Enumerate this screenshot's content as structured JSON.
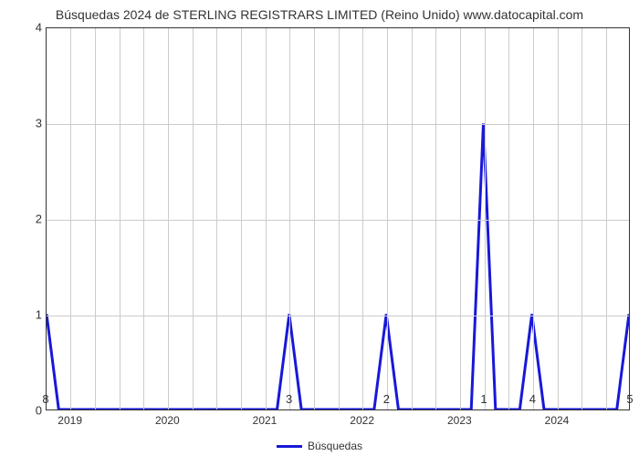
{
  "title": "Búsquedas 2024 de STERLING REGISTRARS LIMITED (Reino Unido) www.datocapital.com",
  "chart": {
    "type": "line",
    "series_name": "Búsquedas",
    "line_color": "#1818d8",
    "line_width": 3,
    "background_color": "#ffffff",
    "grid_color": "#cccccc",
    "axis_color": "#333333",
    "ylim": [
      0,
      4
    ],
    "yticks": [
      0,
      1,
      2,
      3,
      4
    ],
    "n_x_major": 12,
    "x_year_labels": [
      "2019",
      "2020",
      "2021",
      "2022",
      "2023",
      "2024"
    ],
    "x_value_labels": {
      "0": "8",
      "5": "3",
      "7": "2",
      "9": "1",
      "10": "4",
      "12": "5"
    },
    "data": [
      {
        "x": 0.0,
        "y": 1.0
      },
      {
        "x": 0.25,
        "y": 0.0
      },
      {
        "x": 4.75,
        "y": 0.0
      },
      {
        "x": 5.0,
        "y": 1.0
      },
      {
        "x": 5.25,
        "y": 0.0
      },
      {
        "x": 6.75,
        "y": 0.0
      },
      {
        "x": 7.0,
        "y": 1.0
      },
      {
        "x": 7.25,
        "y": 0.0
      },
      {
        "x": 8.75,
        "y": 0.0
      },
      {
        "x": 9.0,
        "y": 3.0
      },
      {
        "x": 9.25,
        "y": 0.0
      },
      {
        "x": 9.75,
        "y": 0.0
      },
      {
        "x": 10.0,
        "y": 1.0
      },
      {
        "x": 10.25,
        "y": 0.0
      },
      {
        "x": 11.75,
        "y": 0.0
      },
      {
        "x": 12.0,
        "y": 1.0
      }
    ]
  },
  "legend_label": "Búsquedas"
}
